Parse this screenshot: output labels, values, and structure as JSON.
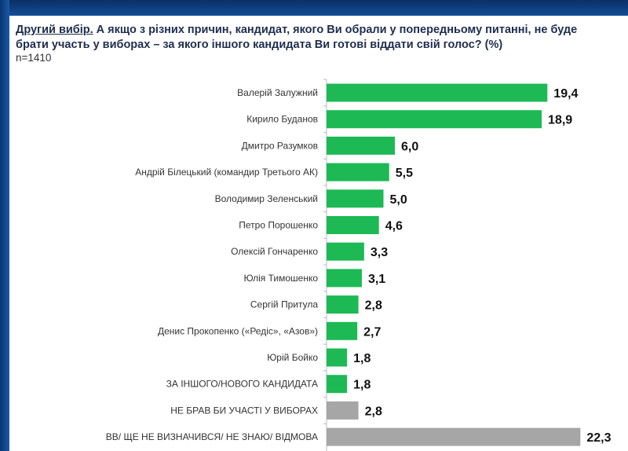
{
  "header": {
    "title_underlined": "Другий вибір.",
    "title_rest": " А якщо з різних причин, кандидат, якого Ви обрали у попередньому питанні, не буде брати участь у виборах – за якого іншого кандидата Ви готові віддати свій голос? (%)",
    "sample": "n=1410"
  },
  "chart_data": {
    "type": "bar",
    "orientation": "horizontal",
    "categories": [
      "Валерій Залужний",
      "Кирило Буданов",
      "Дмитро Разумков",
      "Андрій Білецький (командир Третього АК)",
      "Володимир Зеленський",
      "Петро Порошенко",
      "Олексій Гончаренко",
      "Юлія Тимошенко",
      "Сергій Притула",
      "Денис Прокопенко («Редіс», «Азов»)",
      "Юрій Бойко",
      "ЗА ІНШОГО/НОВОГО КАНДИДАТА",
      "НЕ БРАВ БИ УЧАСТІ У ВИБОРАХ",
      "ВВ/ ЩЕ НЕ ВИЗНАЧИВСЯ/ НЕ ЗНАЮ/ ВІДМОВА"
    ],
    "values": [
      19.4,
      18.9,
      6.0,
      5.5,
      5.0,
      4.6,
      3.3,
      3.1,
      2.8,
      2.7,
      1.8,
      1.8,
      2.8,
      22.3
    ],
    "value_labels": [
      "19,4",
      "18,9",
      "6,0",
      "5,5",
      "5,0",
      "4,6",
      "3,3",
      "3,1",
      "2,8",
      "2,7",
      "1,8",
      "1,8",
      "2,8",
      "22,3"
    ],
    "bar_colors": [
      "#1db954",
      "#1db954",
      "#1db954",
      "#1db954",
      "#1db954",
      "#1db954",
      "#1db954",
      "#1db954",
      "#1db954",
      "#1db954",
      "#1db954",
      "#1db954",
      "#a6a6a6",
      "#a6a6a6"
    ],
    "grid": false
  }
}
